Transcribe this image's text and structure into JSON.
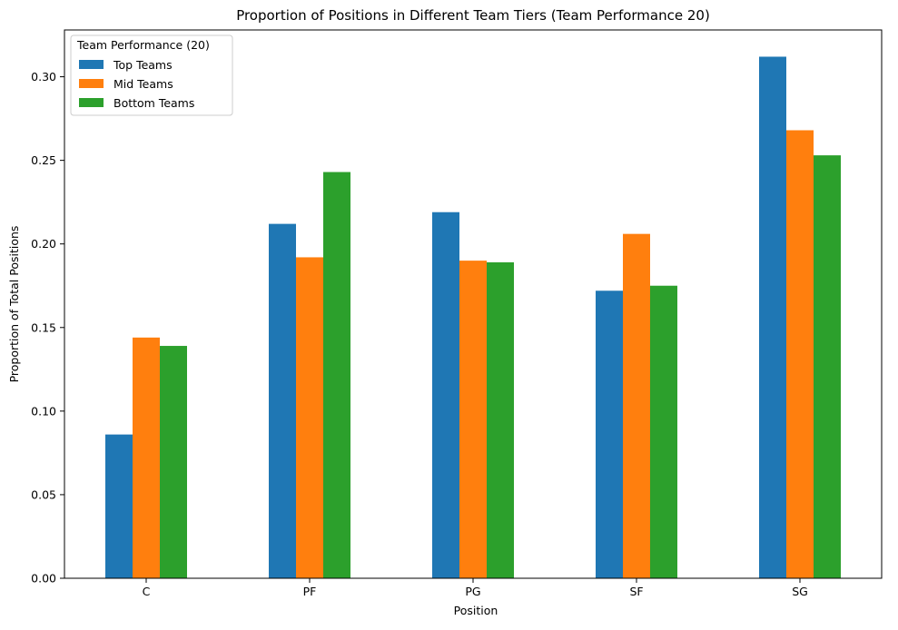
{
  "chart_data": {
    "type": "bar",
    "title": "Proportion of Positions in Different Team Tiers (Team Performance 20)",
    "xlabel": "Position",
    "ylabel": "Proportion of Total Positions",
    "categories": [
      "C",
      "PF",
      "PG",
      "SF",
      "SG"
    ],
    "series": [
      {
        "name": "Top Teams",
        "color": "#1f77b4",
        "values": [
          0.086,
          0.212,
          0.219,
          0.172,
          0.312
        ]
      },
      {
        "name": "Mid Teams",
        "color": "#ff7f0e",
        "values": [
          0.144,
          0.192,
          0.19,
          0.206,
          0.268
        ]
      },
      {
        "name": "Bottom Teams",
        "color": "#2ca02c",
        "values": [
          0.139,
          0.243,
          0.189,
          0.175,
          0.253
        ]
      }
    ],
    "ylim": [
      0,
      0.328
    ],
    "yticks": [
      "0.00",
      "0.05",
      "0.10",
      "0.15",
      "0.20",
      "0.25",
      "0.30"
    ],
    "legend_title": "Team Performance (20)",
    "legend_position": "top-left",
    "grid": false
  }
}
